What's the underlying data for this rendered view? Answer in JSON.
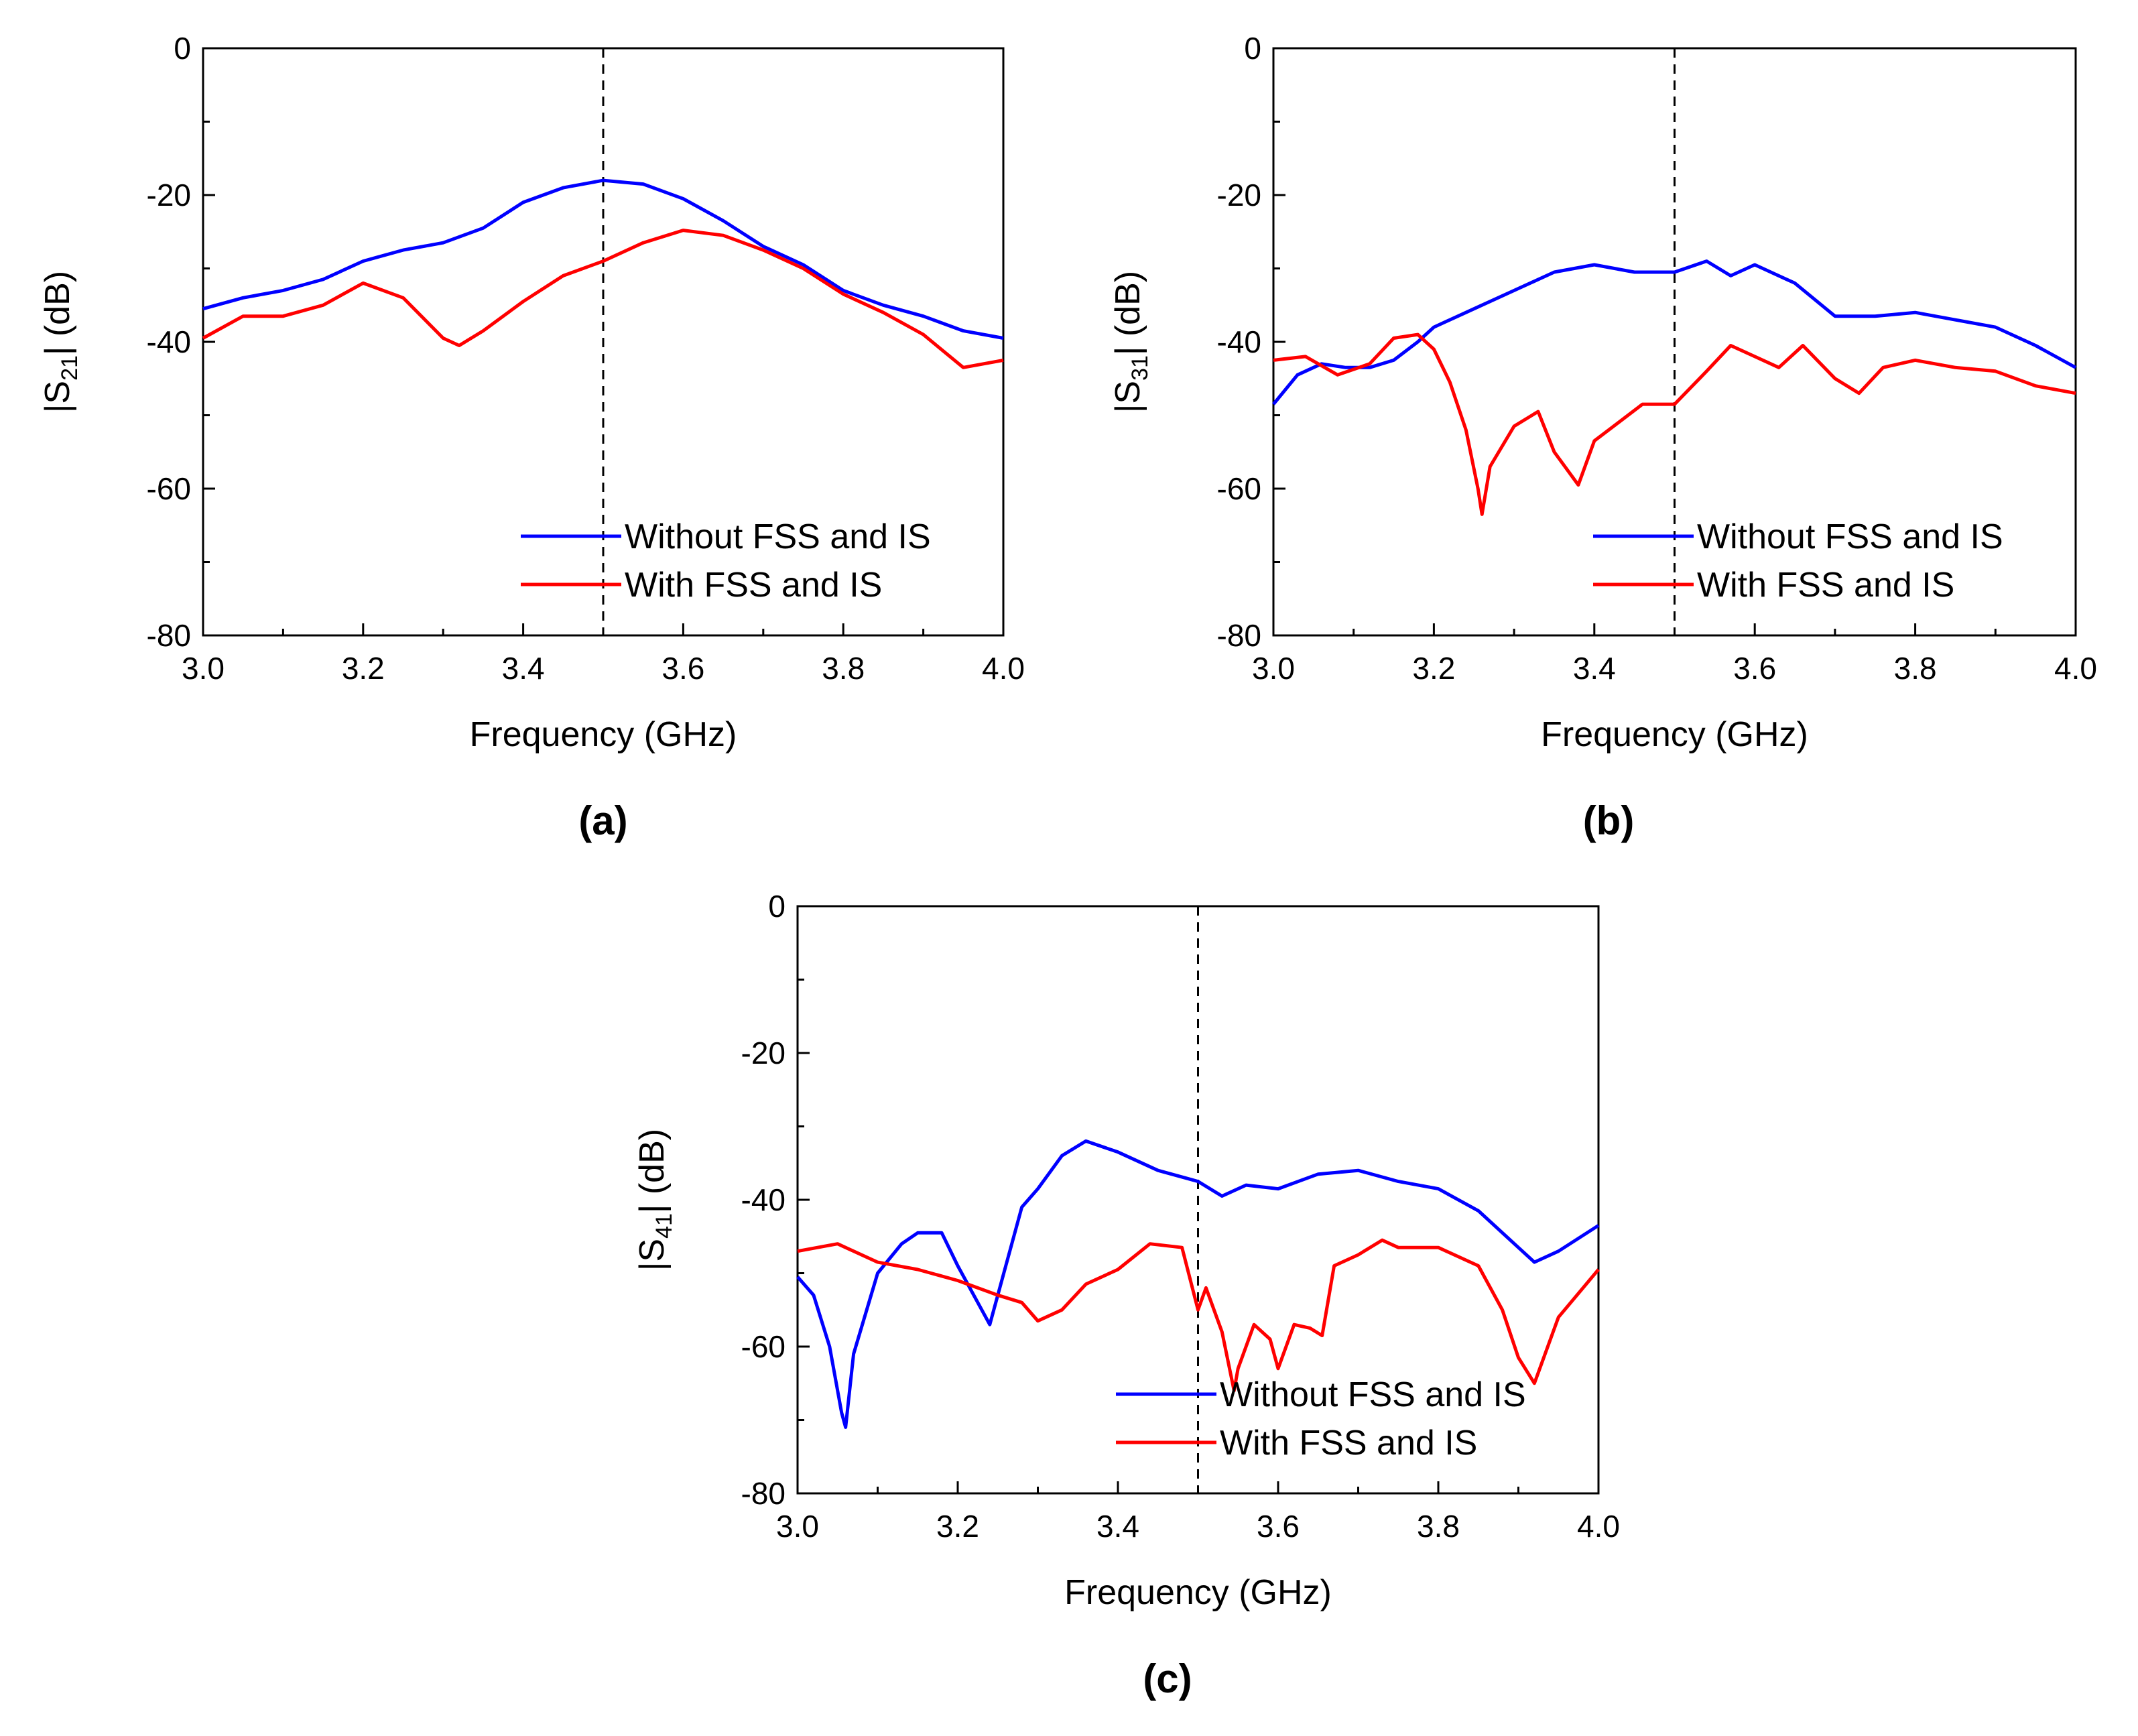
{
  "chart_data": [
    {
      "type": "line",
      "panel_label": "(a)",
      "xlabel": "Frequency (GHz)",
      "ylabel_prefix": "|S",
      "ylabel_sub": "21",
      "ylabel_suffix": "| (dB)",
      "xlim": [
        3.0,
        4.0
      ],
      "ylim": [
        -80,
        0
      ],
      "x_ticks": [
        "3.0",
        "3.2",
        "3.4",
        "3.6",
        "3.8",
        "4.0"
      ],
      "y_ticks": [
        "0",
        "-20",
        "-40",
        "-60",
        "-80"
      ],
      "vline_x": 3.5,
      "legend_position": "bottom-right",
      "series": [
        {
          "name": "Without FSS and IS",
          "color": "#0000ff",
          "x": [
            3.0,
            3.05,
            3.1,
            3.15,
            3.2,
            3.25,
            3.3,
            3.35,
            3.4,
            3.45,
            3.5,
            3.55,
            3.6,
            3.65,
            3.7,
            3.75,
            3.8,
            3.85,
            3.9,
            3.95,
            4.0
          ],
          "y": [
            -35.5,
            -34,
            -33,
            -31.5,
            -29,
            -27.5,
            -26.5,
            -24.5,
            -21,
            -19,
            -18,
            -18.5,
            -20.5,
            -23.5,
            -27,
            -29.5,
            -33,
            -35,
            -36.5,
            -38.5,
            -39.5
          ]
        },
        {
          "name": "With FSS and IS",
          "color": "#ff0000",
          "x": [
            3.0,
            3.05,
            3.1,
            3.15,
            3.2,
            3.25,
            3.3,
            3.32,
            3.35,
            3.4,
            3.45,
            3.5,
            3.55,
            3.6,
            3.65,
            3.7,
            3.75,
            3.8,
            3.85,
            3.9,
            3.95,
            4.0
          ],
          "y": [
            -39.5,
            -36.5,
            -36.5,
            -35,
            -32,
            -34,
            -39.5,
            -40.5,
            -38.5,
            -34.5,
            -31,
            -29,
            -26.5,
            -24.8,
            -25.5,
            -27.5,
            -30,
            -33.5,
            -36,
            -39,
            -43.5,
            -42.5
          ]
        }
      ]
    },
    {
      "type": "line",
      "panel_label": "(b)",
      "xlabel": "Frequency (GHz)",
      "ylabel_prefix": "|S",
      "ylabel_sub": "31",
      "ylabel_suffix": "| (dB)",
      "xlim": [
        3.0,
        4.0
      ],
      "ylim": [
        -80,
        0
      ],
      "x_ticks": [
        "3.0",
        "3.2",
        "3.4",
        "3.6",
        "3.8",
        "4.0"
      ],
      "y_ticks": [
        "0",
        "-20",
        "-40",
        "-60",
        "-80"
      ],
      "vline_x": 3.5,
      "legend_position": "bottom-right",
      "series": [
        {
          "name": "Without FSS and IS",
          "color": "#0000ff",
          "x": [
            3.0,
            3.03,
            3.06,
            3.09,
            3.12,
            3.15,
            3.18,
            3.2,
            3.25,
            3.3,
            3.35,
            3.4,
            3.45,
            3.5,
            3.54,
            3.57,
            3.6,
            3.65,
            3.7,
            3.75,
            3.8,
            3.85,
            3.9,
            3.95,
            4.0
          ],
          "y": [
            -48.5,
            -44.5,
            -43,
            -43.5,
            -43.5,
            -42.5,
            -40,
            -38,
            -35.5,
            -33,
            -30.5,
            -29.5,
            -30.5,
            -30.5,
            -29,
            -31,
            -29.5,
            -32,
            -36.5,
            -36.5,
            -36,
            -37,
            -38,
            -40.5,
            -43.5
          ]
        },
        {
          "name": "With FSS and IS",
          "color": "#ff0000",
          "x": [
            3.0,
            3.04,
            3.08,
            3.12,
            3.15,
            3.18,
            3.2,
            3.22,
            3.24,
            3.255,
            3.26,
            3.27,
            3.3,
            3.33,
            3.35,
            3.38,
            3.4,
            3.43,
            3.46,
            3.5,
            3.54,
            3.57,
            3.6,
            3.63,
            3.66,
            3.7,
            3.73,
            3.76,
            3.8,
            3.85,
            3.9,
            3.95,
            4.0
          ],
          "y": [
            -42.5,
            -42,
            -44.5,
            -43,
            -39.5,
            -39,
            -41,
            -45.5,
            -52,
            -60,
            -63.5,
            -57,
            -51.5,
            -49.5,
            -55,
            -59.5,
            -53.5,
            -51,
            -48.5,
            -48.5,
            -44,
            -40.5,
            -42,
            -43.5,
            -40.5,
            -45,
            -47,
            -43.5,
            -42.5,
            -43.5,
            -44,
            -46,
            -47
          ]
        }
      ]
    },
    {
      "type": "line",
      "panel_label": "(c)",
      "xlabel": "Frequency (GHz)",
      "ylabel_prefix": "|S",
      "ylabel_sub": "41",
      "ylabel_suffix": "| (dB)",
      "xlim": [
        3.0,
        4.0
      ],
      "ylim": [
        -80,
        0
      ],
      "x_ticks": [
        "3.0",
        "3.2",
        "3.4",
        "3.6",
        "3.8",
        "4.0"
      ],
      "y_ticks": [
        "0",
        "-20",
        "-40",
        "-60",
        "-80"
      ],
      "vline_x": 3.5,
      "legend_position": "bottom-right",
      "series": [
        {
          "name": "Without FSS and IS",
          "color": "#0000ff",
          "x": [
            3.0,
            3.02,
            3.04,
            3.055,
            3.06,
            3.07,
            3.1,
            3.13,
            3.15,
            3.18,
            3.2,
            3.22,
            3.24,
            3.26,
            3.28,
            3.3,
            3.33,
            3.36,
            3.4,
            3.45,
            3.5,
            3.53,
            3.56,
            3.6,
            3.65,
            3.7,
            3.75,
            3.8,
            3.85,
            3.9,
            3.92,
            3.95,
            4.0
          ],
          "y": [
            -50.5,
            -53,
            -60,
            -69,
            -71,
            -61,
            -50,
            -46,
            -44.5,
            -44.5,
            -49,
            -53,
            -57,
            -49,
            -41,
            -38.5,
            -34,
            -32,
            -33.5,
            -36,
            -37.5,
            -39.5,
            -38,
            -38.5,
            -36.5,
            -36,
            -37.5,
            -38.5,
            -41.5,
            -46.5,
            -48.5,
            -47,
            -43.5
          ]
        },
        {
          "name": "With FSS and IS",
          "color": "#ff0000",
          "x": [
            3.0,
            3.05,
            3.1,
            3.15,
            3.2,
            3.25,
            3.28,
            3.3,
            3.33,
            3.36,
            3.4,
            3.44,
            3.48,
            3.5,
            3.51,
            3.53,
            3.545,
            3.55,
            3.57,
            3.59,
            3.6,
            3.62,
            3.64,
            3.655,
            3.67,
            3.7,
            3.73,
            3.75,
            3.8,
            3.85,
            3.88,
            3.9,
            3.92,
            3.95,
            4.0
          ],
          "y": [
            -47,
            -46,
            -48.5,
            -49.5,
            -51,
            -53,
            -54,
            -56.5,
            -55,
            -51.5,
            -49.5,
            -46,
            -46.5,
            -55,
            -52,
            -58,
            -66,
            -63,
            -57,
            -59,
            -63,
            -57,
            -57.5,
            -58.5,
            -49,
            -47.5,
            -45.5,
            -46.5,
            -46.5,
            -49,
            -55,
            -61.5,
            -65,
            -56,
            -49.5
          ]
        }
      ]
    }
  ]
}
